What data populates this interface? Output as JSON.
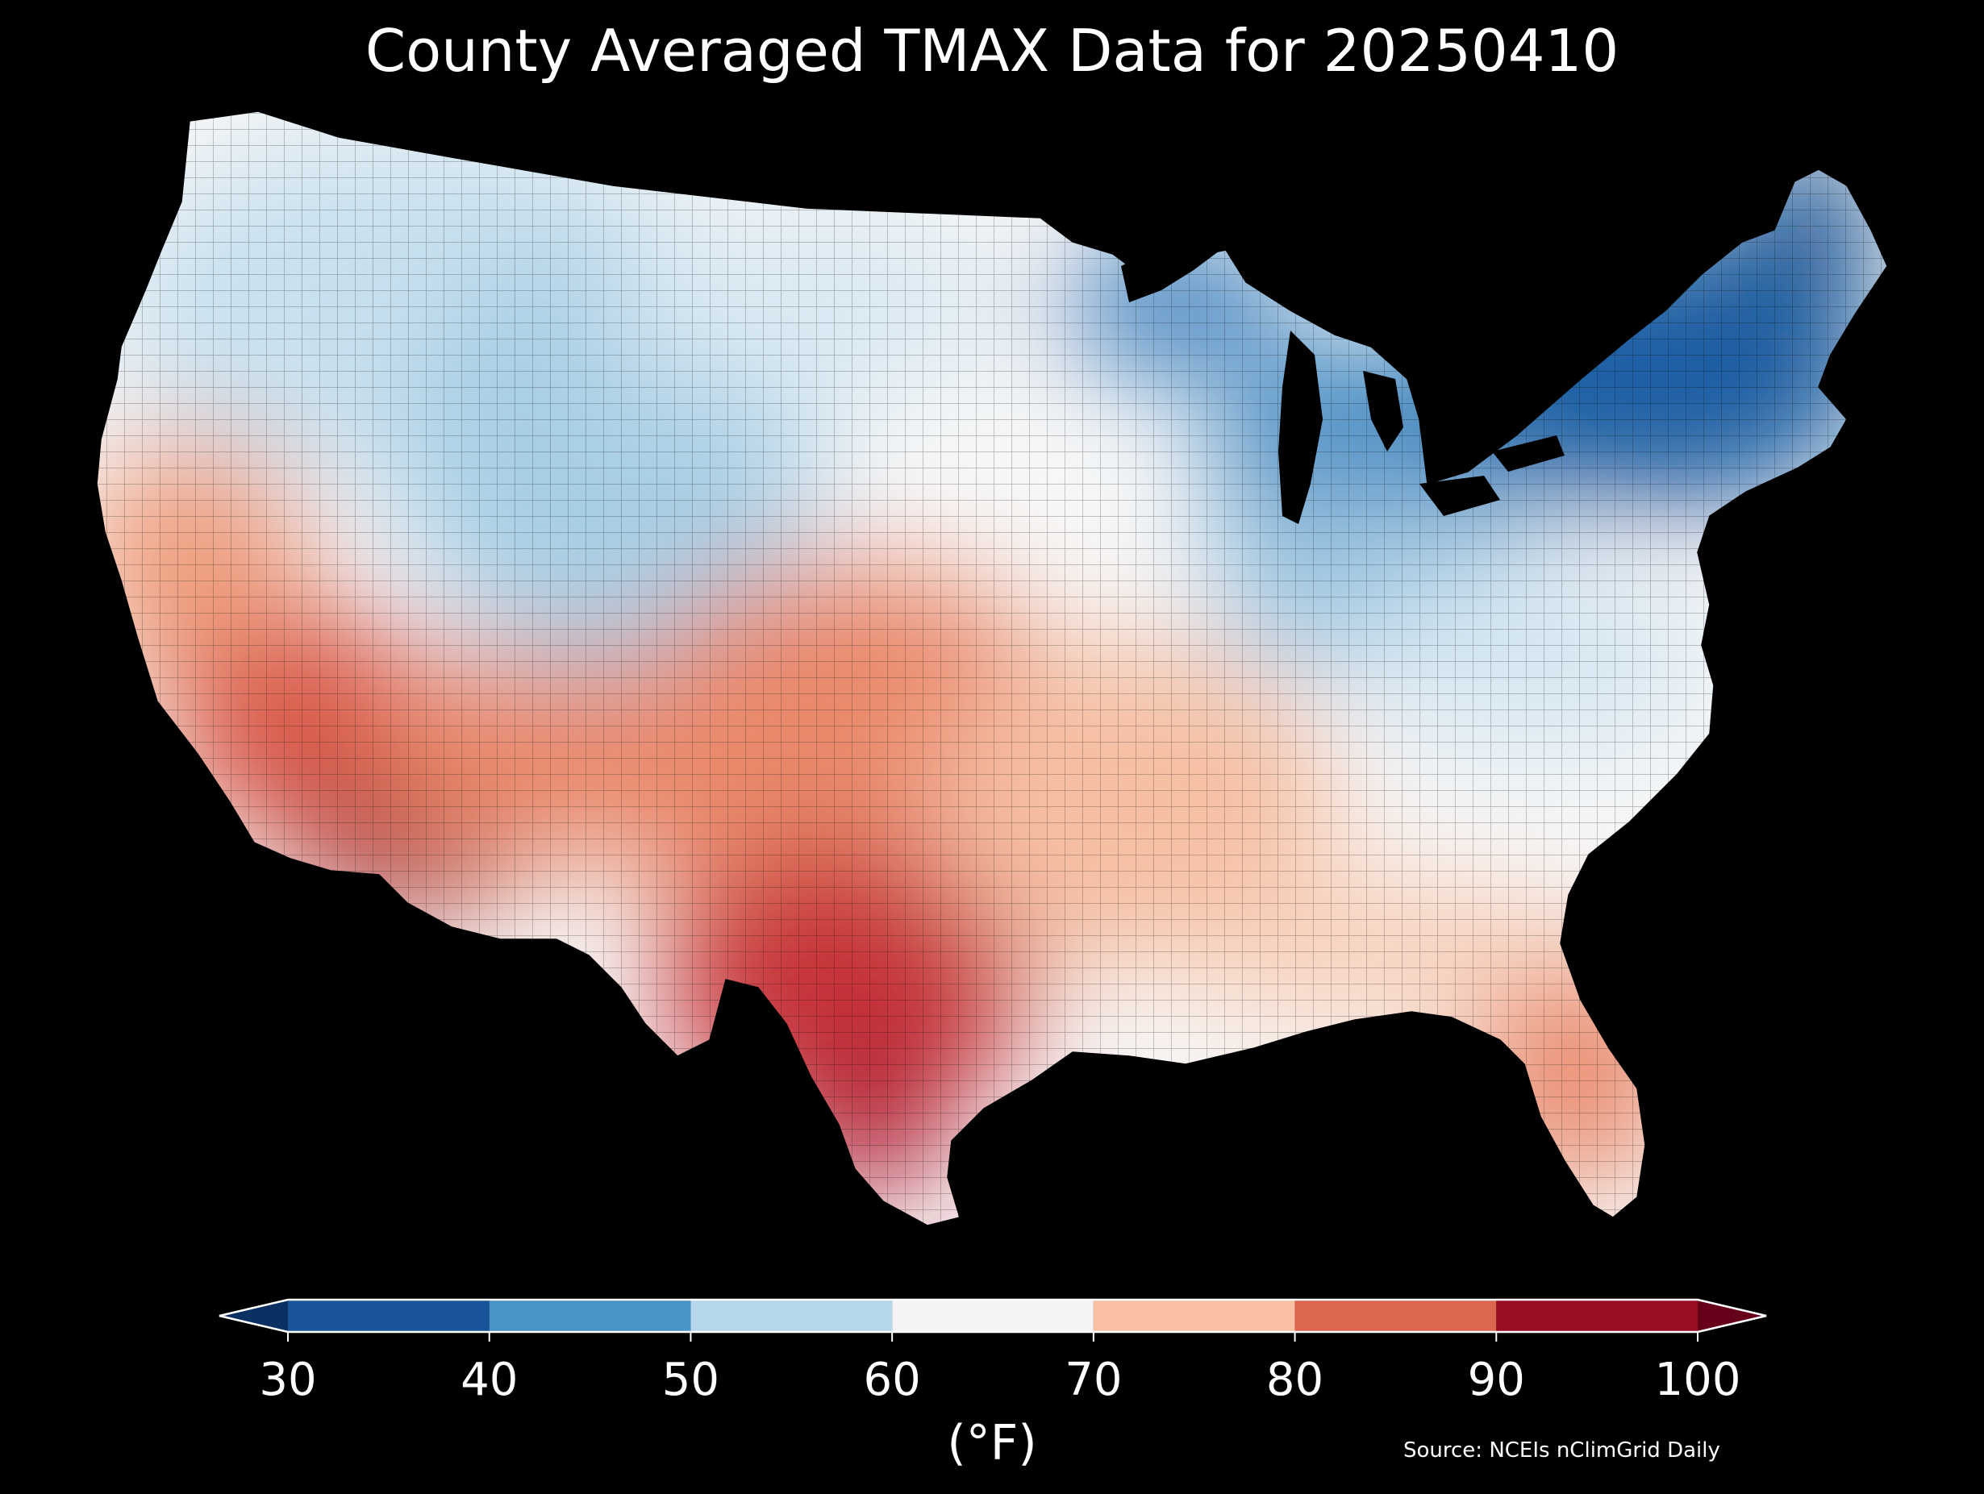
{
  "title": "County Averaged TMAX Data for 20250410",
  "colorbar": {
    "ticks": [
      "30",
      "40",
      "50",
      "60",
      "70",
      "80",
      "90",
      "100"
    ],
    "unit": "(°F)",
    "bins": [
      {
        "min": 30,
        "max": 40,
        "color": "#1a5599"
      },
      {
        "min": 40,
        "max": 50,
        "color": "#4894c7"
      },
      {
        "min": 50,
        "max": 60,
        "color": "#b5d7ea"
      },
      {
        "min": 60,
        "max": 70,
        "color": "#f4f4f4"
      },
      {
        "min": 70,
        "max": 80,
        "color": "#f9c0a4"
      },
      {
        "min": 80,
        "max": 90,
        "color": "#dc6750"
      },
      {
        "min": 90,
        "max": 100,
        "color": "#970e25"
      }
    ],
    "under_color": "#0b3062",
    "over_color": "#670019",
    "extend": "both"
  },
  "source": "Source: NCEIs nClimGrid Daily",
  "map": {
    "region": "Contiguous United States",
    "granularity": "county",
    "variable": "TMAX",
    "background": "#000000"
  }
}
